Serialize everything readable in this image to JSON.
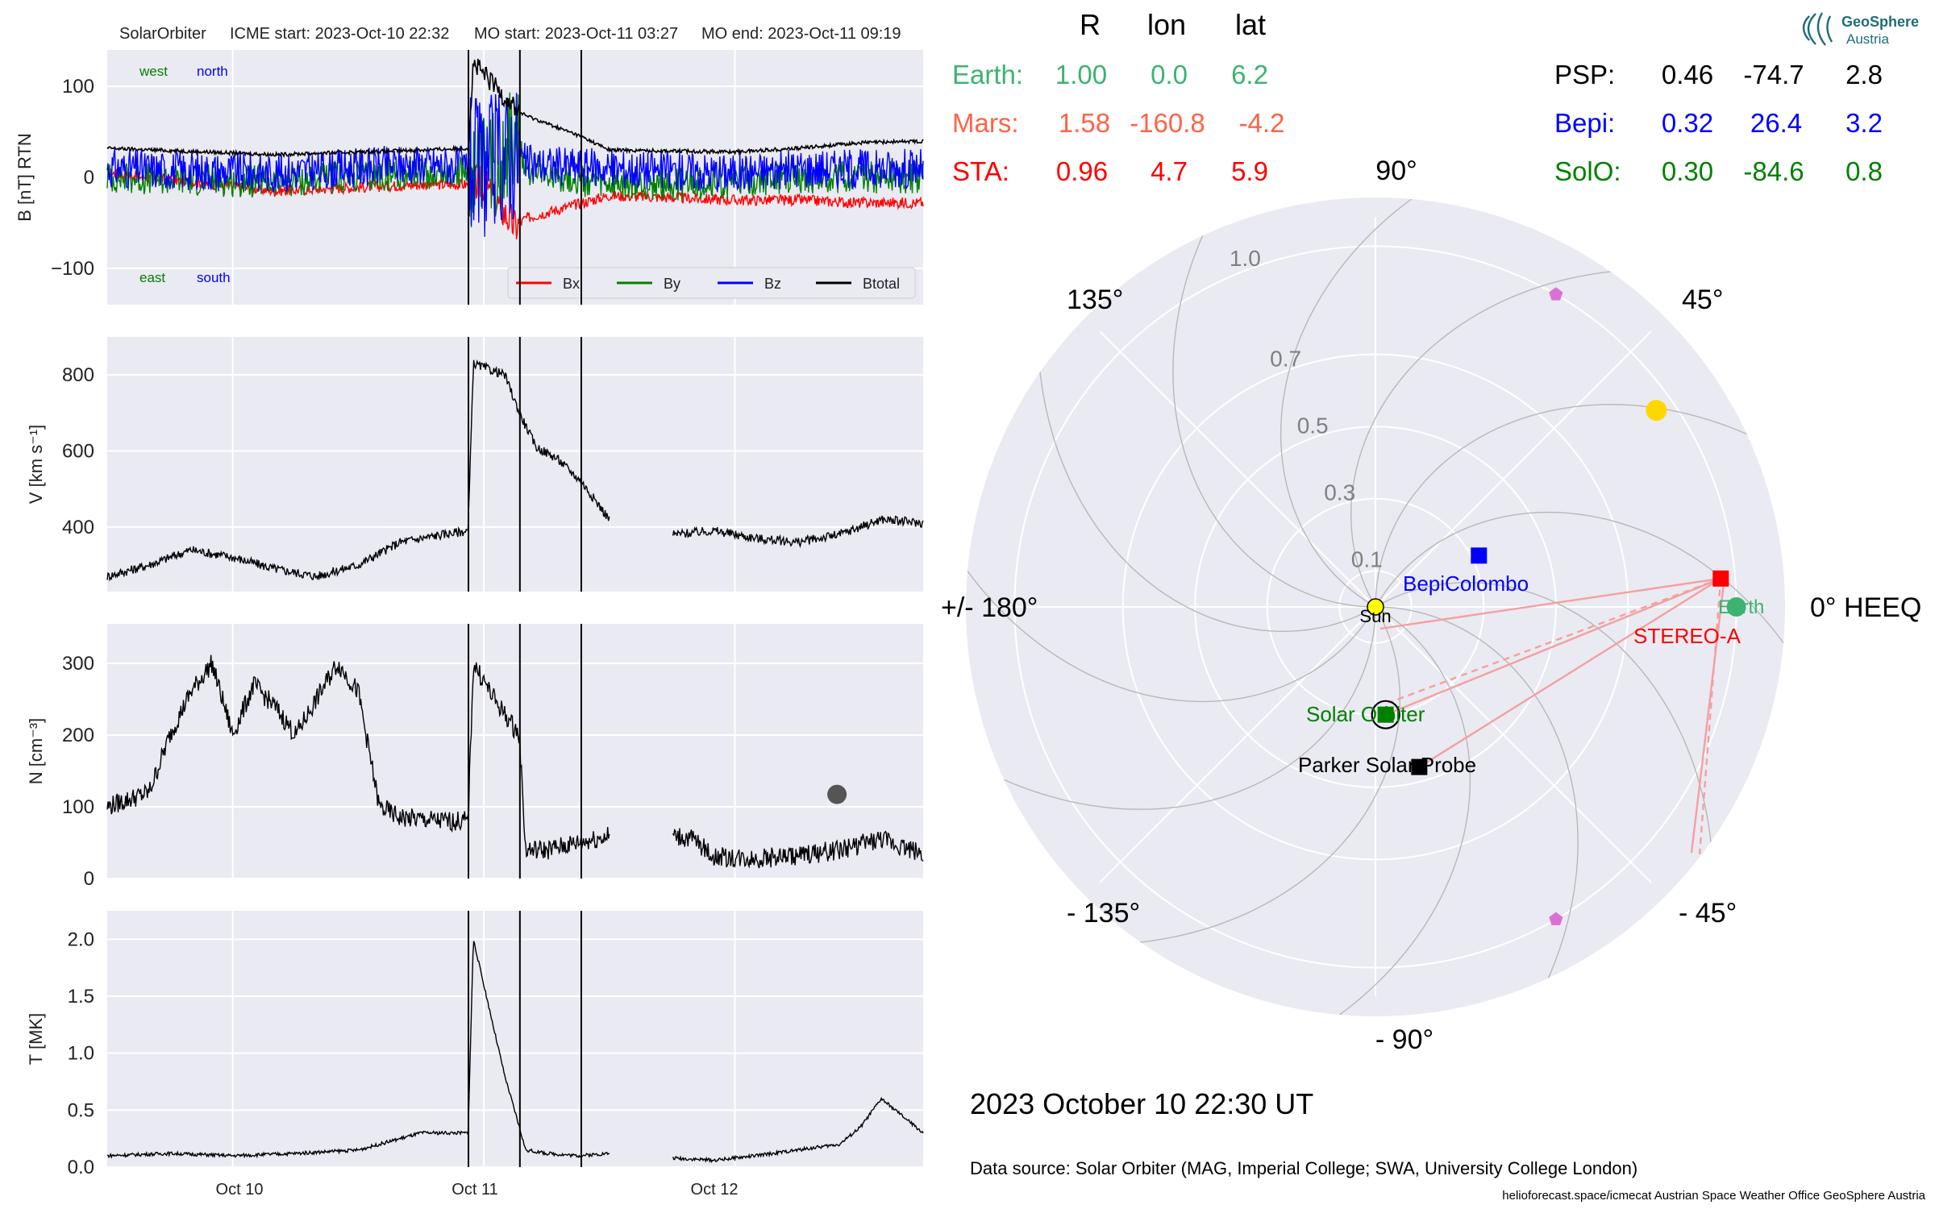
{
  "header": {
    "spacecraft": "SolarOrbiter",
    "icme_start": "ICME start: 2023-Oct-10 22:32",
    "mo_start": "MO start: 2023-Oct-11 03:27",
    "mo_end": "MO end: 2023-Oct-11 09:19"
  },
  "colors": {
    "bx": "#ff0000",
    "by": "#008000",
    "bz": "#0000ff",
    "btotal": "#000000",
    "earth": "#3cb371",
    "mars": "#ff6347",
    "sta": "#ff0000",
    "psp": "#000000",
    "bepi": "#0000ff",
    "solo": "#008000",
    "panel_bg": "#eaeaf2",
    "grid": "#ffffff"
  },
  "positions_table": {
    "headers": [
      "R",
      "lon",
      "lat"
    ],
    "left_rows": [
      {
        "name": "Earth:",
        "r": "1.00",
        "lon": "0.0",
        "lat": "6.2",
        "color": "#3cb371"
      },
      {
        "name": "Mars:",
        "r": "1.58",
        "lon": "-160.8",
        "lat": "-4.2",
        "color": "#ff6347"
      },
      {
        "name": "STA:",
        "r": "0.96",
        "lon": "4.7",
        "lat": "5.9",
        "color": "#ff0000"
      }
    ],
    "right_rows": [
      {
        "name": "PSP:",
        "r": "0.46",
        "lon": "-74.7",
        "lat": "2.8",
        "color": "#000000"
      },
      {
        "name": "Bepi:",
        "r": "0.32",
        "lon": "26.4",
        "lat": "3.2",
        "color": "#0000ff"
      },
      {
        "name": "SolO:",
        "r": "0.30",
        "lon": "-84.6",
        "lat": "0.8",
        "color": "#008000"
      }
    ]
  },
  "logo": {
    "line1": "GeoSphere",
    "line2": "Austria"
  },
  "polar": {
    "angle_labels": {
      "a0": "0° HEEQ",
      "a45": "45°",
      "a90": "90°",
      "a135": "135°",
      "a180": "+/- 180°",
      "am135": "- 135°",
      "am90": "- 90°",
      "am45": "- 45°"
    },
    "r_labels": [
      "0.1",
      "0.3",
      "0.5",
      "0.7",
      "1.0"
    ],
    "objects": {
      "sun": "Sun",
      "bepi": "BepiColombo",
      "earth": "Earth",
      "sta": "STEREO-A",
      "solo": "Solar Orbiter",
      "psp": "Parker Solar Probe"
    }
  },
  "timestamp": "2023 October 10  22:30 UT",
  "data_source": "Data source: Solar Orbiter (MAG, Imperial College; SWA, University College London)",
  "footer": "helioforecast.space/icmecat   Austrian Space Weather Office   GeoSphere Austria",
  "chart_data": [
    {
      "type": "line",
      "ylabel": "B [nT] RTN",
      "ylim": [
        -140,
        140
      ],
      "yticks": [
        "100",
        "0",
        "−100"
      ],
      "x_days_from_Oct10_00UT_range": [
        -0.5,
        2.75
      ],
      "xtick_labels": [
        "Oct 10",
        "Oct 11",
        "Oct 12"
      ],
      "event_lines": [
        "2023-10-10 22:32",
        "2023-10-11 03:27",
        "2023-10-11 09:19"
      ],
      "corner_labels": {
        "west": "west",
        "north": "north",
        "east": "east",
        "south": "south"
      },
      "legend": [
        "Bx",
        "By",
        "Bz",
        "Btotal"
      ],
      "series": [
        {
          "name": "Bx",
          "time_h": [
            -12,
            4,
            18,
            24,
            27,
            28,
            36,
            48,
            54,
            60,
            66
          ],
          "values": [
            5,
            -15,
            -8,
            -8,
            -55,
            -45,
            -20,
            -25,
            -25,
            -28,
            -28
          ]
        },
        {
          "name": "By",
          "time_h": [
            -12,
            4,
            18,
            24,
            27,
            28,
            36,
            48,
            54,
            60,
            66
          ],
          "values": [
            0,
            -5,
            5,
            5,
            40,
            10,
            -10,
            -5,
            0,
            0,
            0
          ]
        },
        {
          "name": "Bz",
          "time_h": [
            -12,
            4,
            18,
            24,
            27,
            28,
            36,
            48,
            54,
            60,
            66
          ],
          "values": [
            10,
            5,
            15,
            10,
            30,
            15,
            10,
            5,
            10,
            10,
            10
          ]
        },
        {
          "name": "Btotal",
          "time_h": [
            -12,
            4,
            18,
            22.5,
            23,
            27.4,
            28,
            33.3,
            36,
            48,
            54,
            60,
            66
          ],
          "values": [
            32,
            25,
            30,
            32,
            125,
            72,
            68,
            45,
            30,
            28,
            32,
            38,
            40
          ]
        }
      ]
    },
    {
      "type": "line",
      "ylabel": "V [km s⁻¹]",
      "ylim": [
        230,
        900
      ],
      "yticks": [
        "800",
        "600",
        "400"
      ],
      "series": [
        {
          "name": "V",
          "time_h": [
            -12,
            -8,
            -4,
            0,
            4,
            8,
            12,
            16,
            20,
            22.5,
            23,
            24,
            26,
            27.4,
            29,
            31,
            33.3,
            36,
            38,
            42,
            46,
            50,
            54,
            58,
            62,
            66
          ],
          "values": [
            270,
            300,
            340,
            320,
            290,
            270,
            300,
            360,
            380,
            390,
            830,
            820,
            800,
            700,
            610,
            580,
            520,
            420,
            null,
            380,
            390,
            370,
            360,
            380,
            420,
            410
          ]
        }
      ]
    },
    {
      "type": "line",
      "ylabel": "N [cm⁻³]",
      "ylim": [
        0,
        355
      ],
      "yticks": [
        "300",
        "200",
        "100",
        "0"
      ],
      "series": [
        {
          "name": "N",
          "time_h": [
            -12,
            -8,
            -6,
            -4,
            -2,
            0,
            2,
            4,
            6,
            8,
            10,
            12,
            14,
            16,
            20,
            22.5,
            23,
            25,
            27.4,
            28,
            30,
            33,
            36,
            38,
            42,
            44,
            46,
            50,
            54,
            58,
            62,
            66
          ],
          "values": [
            100,
            120,
            200,
            260,
            300,
            200,
            270,
            240,
            200,
            250,
            300,
            260,
            100,
            85,
            80,
            80,
            300,
            250,
            200,
            40,
            40,
            50,
            60,
            null,
            60,
            55,
            30,
            28,
            32,
            40,
            55,
            35
          ]
        }
      ]
    },
    {
      "type": "line",
      "ylabel": "T [MK]",
      "ylim": [
        0,
        2.25
      ],
      "yticks": [
        "2.0",
        "1.5",
        "1.0",
        "0.5",
        "0.0"
      ],
      "series": [
        {
          "name": "T",
          "time_h": [
            -12,
            -6,
            0,
            6,
            12,
            18,
            22.5,
            23,
            24,
            25,
            26,
            27.4,
            28,
            30,
            33,
            36,
            38,
            42,
            46,
            50,
            54,
            58,
            60,
            62,
            66
          ],
          "values": [
            0.1,
            0.12,
            0.1,
            0.12,
            0.15,
            0.3,
            0.3,
            2.0,
            1.6,
            1.2,
            0.8,
            0.35,
            0.15,
            0.12,
            0.1,
            0.12,
            null,
            0.08,
            0.06,
            0.1,
            0.15,
            0.2,
            0.35,
            0.6,
            0.3
          ]
        }
      ]
    }
  ],
  "polar_chart": {
    "type": "scatter",
    "coords": "HEEQ longitude (deg), radial distance (AU)",
    "points": [
      {
        "name": "Sun",
        "lon": 0,
        "r": 0
      },
      {
        "name": "BepiColombo",
        "lon": 26.4,
        "r": 0.32,
        "marker": "square",
        "color": "#0000ff"
      },
      {
        "name": "Earth",
        "lon": 0,
        "r": 1.0,
        "marker": "circle",
        "color": "#3cb371"
      },
      {
        "name": "STEREO-A",
        "lon": 4.7,
        "r": 0.96,
        "marker": "square",
        "color": "#ff0000"
      },
      {
        "name": "Solar Orbiter",
        "lon": -84.6,
        "r": 0.3,
        "marker": "square",
        "color": "#008000"
      },
      {
        "name": "Parker Solar Probe",
        "lon": -74.7,
        "r": 0.46,
        "marker": "square",
        "color": "#000000"
      },
      {
        "name": "Mars",
        "lon": -160.8,
        "r": 1.58,
        "marker": "circle",
        "color": "#555555"
      },
      {
        "name": "L4",
        "lon": 60,
        "r": 1.0,
        "marker": "pentagon",
        "color": "#da70d6"
      },
      {
        "name": "L5",
        "lon": -60,
        "r": 1.0,
        "marker": "pentagon",
        "color": "#da70d6"
      },
      {
        "name": "Jupiter",
        "lon": 35,
        "r": 0.95,
        "marker": "circle",
        "color": "#ffd700"
      }
    ]
  }
}
